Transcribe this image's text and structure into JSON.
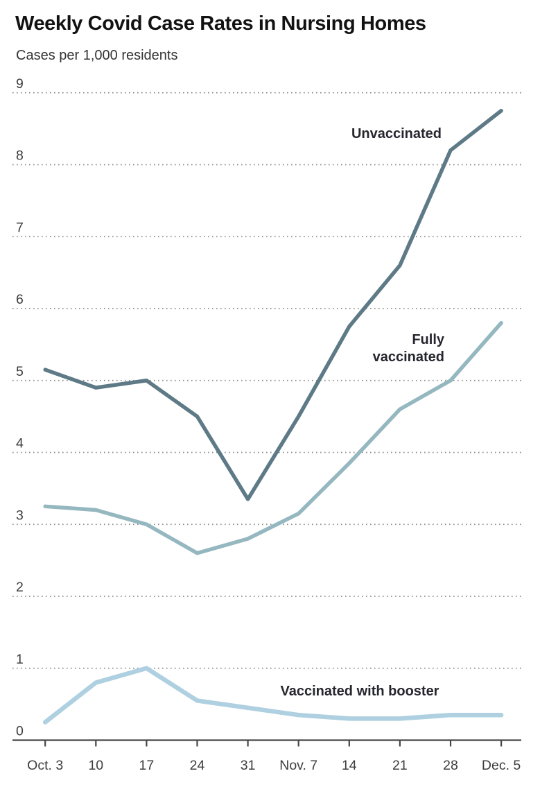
{
  "header": {
    "title": "Weekly Covid Case Rates in Nursing Homes",
    "subtitle": "Cases per 1,000 residents"
  },
  "chart_data": {
    "type": "line",
    "title": "Weekly Covid Case Rates in Nursing Homes",
    "subtitle": "Cases per 1,000 residents",
    "categories": [
      "Oct. 3",
      "10",
      "17",
      "24",
      "31",
      "Nov. 7",
      "14",
      "21",
      "28",
      "Dec. 5"
    ],
    "series": [
      {
        "name": "Unvaccinated",
        "color": "#5e7a86",
        "values": [
          5.15,
          4.9,
          5.0,
          4.5,
          3.35,
          4.5,
          5.75,
          6.6,
          8.2,
          8.75
        ]
      },
      {
        "name": "Fully vaccinated",
        "color": "#95b7bf",
        "values": [
          3.25,
          3.2,
          3.0,
          2.6,
          2.8,
          3.15,
          3.85,
          4.6,
          5.0,
          5.8
        ]
      },
      {
        "name": "Vaccinated with booster",
        "color": "#aed0e0",
        "values": [
          0.25,
          0.8,
          1.0,
          0.55,
          0.45,
          0.35,
          0.3,
          0.3,
          0.35,
          0.35
        ]
      }
    ],
    "yticks": [
      0,
      1,
      2,
      3,
      4,
      5,
      6,
      7,
      8,
      9
    ],
    "ylim": [
      0,
      9
    ],
    "xlabel": "",
    "ylabel": "Cases per 1,000 residents",
    "grid": "horizontal-dotted",
    "legend": "inline-series-labels"
  }
}
